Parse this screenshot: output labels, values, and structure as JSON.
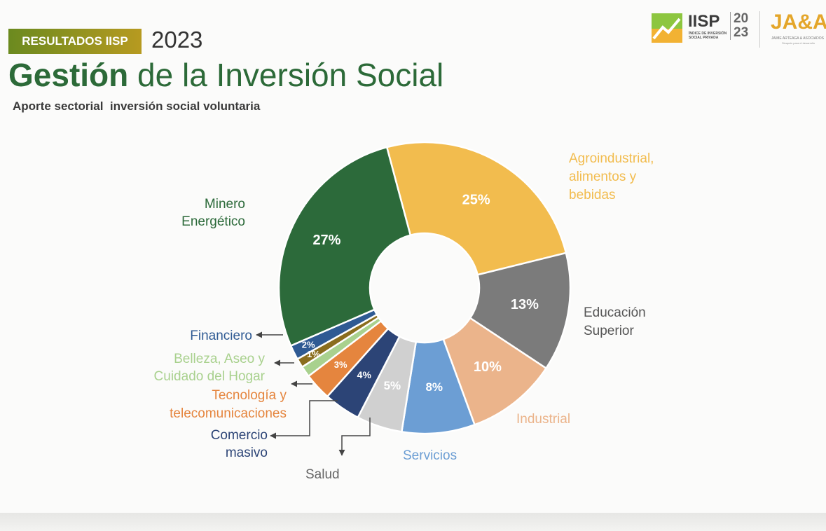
{
  "header": {
    "badge": "RESULTADOS IISP",
    "year": "2023",
    "title_bold": "Gestión",
    "title_rest": " de la Inversión Social",
    "subtitle": "Aporte sectorial  inversión social voluntaria"
  },
  "logos": {
    "iisp_name": "IISP",
    "iisp_subtitle": "ÍNDICE DE INVERSIÓN SOCIAL PRIVADA",
    "iisp_year_top": "20",
    "iisp_year_bottom": "23",
    "ja_name": "JA&A",
    "ja_subtitle": "JAIME ARTEAGA & ASOCIADOS",
    "ja_tagline": "Sinapsis para el desarrollo"
  },
  "chart_data": {
    "type": "pie",
    "donut": true,
    "title": "Aporte sectorial  inversión social voluntaria",
    "legend": "none",
    "slices": [
      {
        "label": [
          "Agroindustrial,",
          "alimentos y",
          "bebidas"
        ],
        "value": 25,
        "value_label": "25%",
        "color": "#f2bc4e"
      },
      {
        "label": [
          "Educación",
          "Superior"
        ],
        "value": 13,
        "value_label": "13%",
        "color": "#7b7b7b"
      },
      {
        "label": [
          "Industrial"
        ],
        "value": 10,
        "value_label": "10%",
        "color": "#ebb48b"
      },
      {
        "label": [
          "Servicios"
        ],
        "value": 8,
        "value_label": "8%",
        "color": "#6c9ed4"
      },
      {
        "label": [
          "Salud"
        ],
        "value": 5,
        "value_label": "5%",
        "color": "#d0d0d0"
      },
      {
        "label": [
          "Comercio",
          "masivo"
        ],
        "value": 4,
        "value_label": "4%",
        "color": "#2c4476"
      },
      {
        "label": [
          "Tecnología y",
          "telecomunicaciones"
        ],
        "value": 3,
        "value_label": "3%",
        "color": "#e5853e"
      },
      {
        "label": [
          "Belleza, Aseo y",
          "Cuidado del Hogar"
        ],
        "value": 1.2,
        "value_label": "",
        "color": "#a9d18e"
      },
      {
        "label": [],
        "value": 1,
        "value_label": "1%",
        "color": "#8a6d1e"
      },
      {
        "label": [
          "Financiero"
        ],
        "value": 1.6,
        "value_label": "2%",
        "color": "#2f5a93"
      },
      {
        "label": [
          "Minero",
          "Energético"
        ],
        "value": 27,
        "value_label": "27%",
        "color": "#2c6a3a"
      }
    ]
  }
}
